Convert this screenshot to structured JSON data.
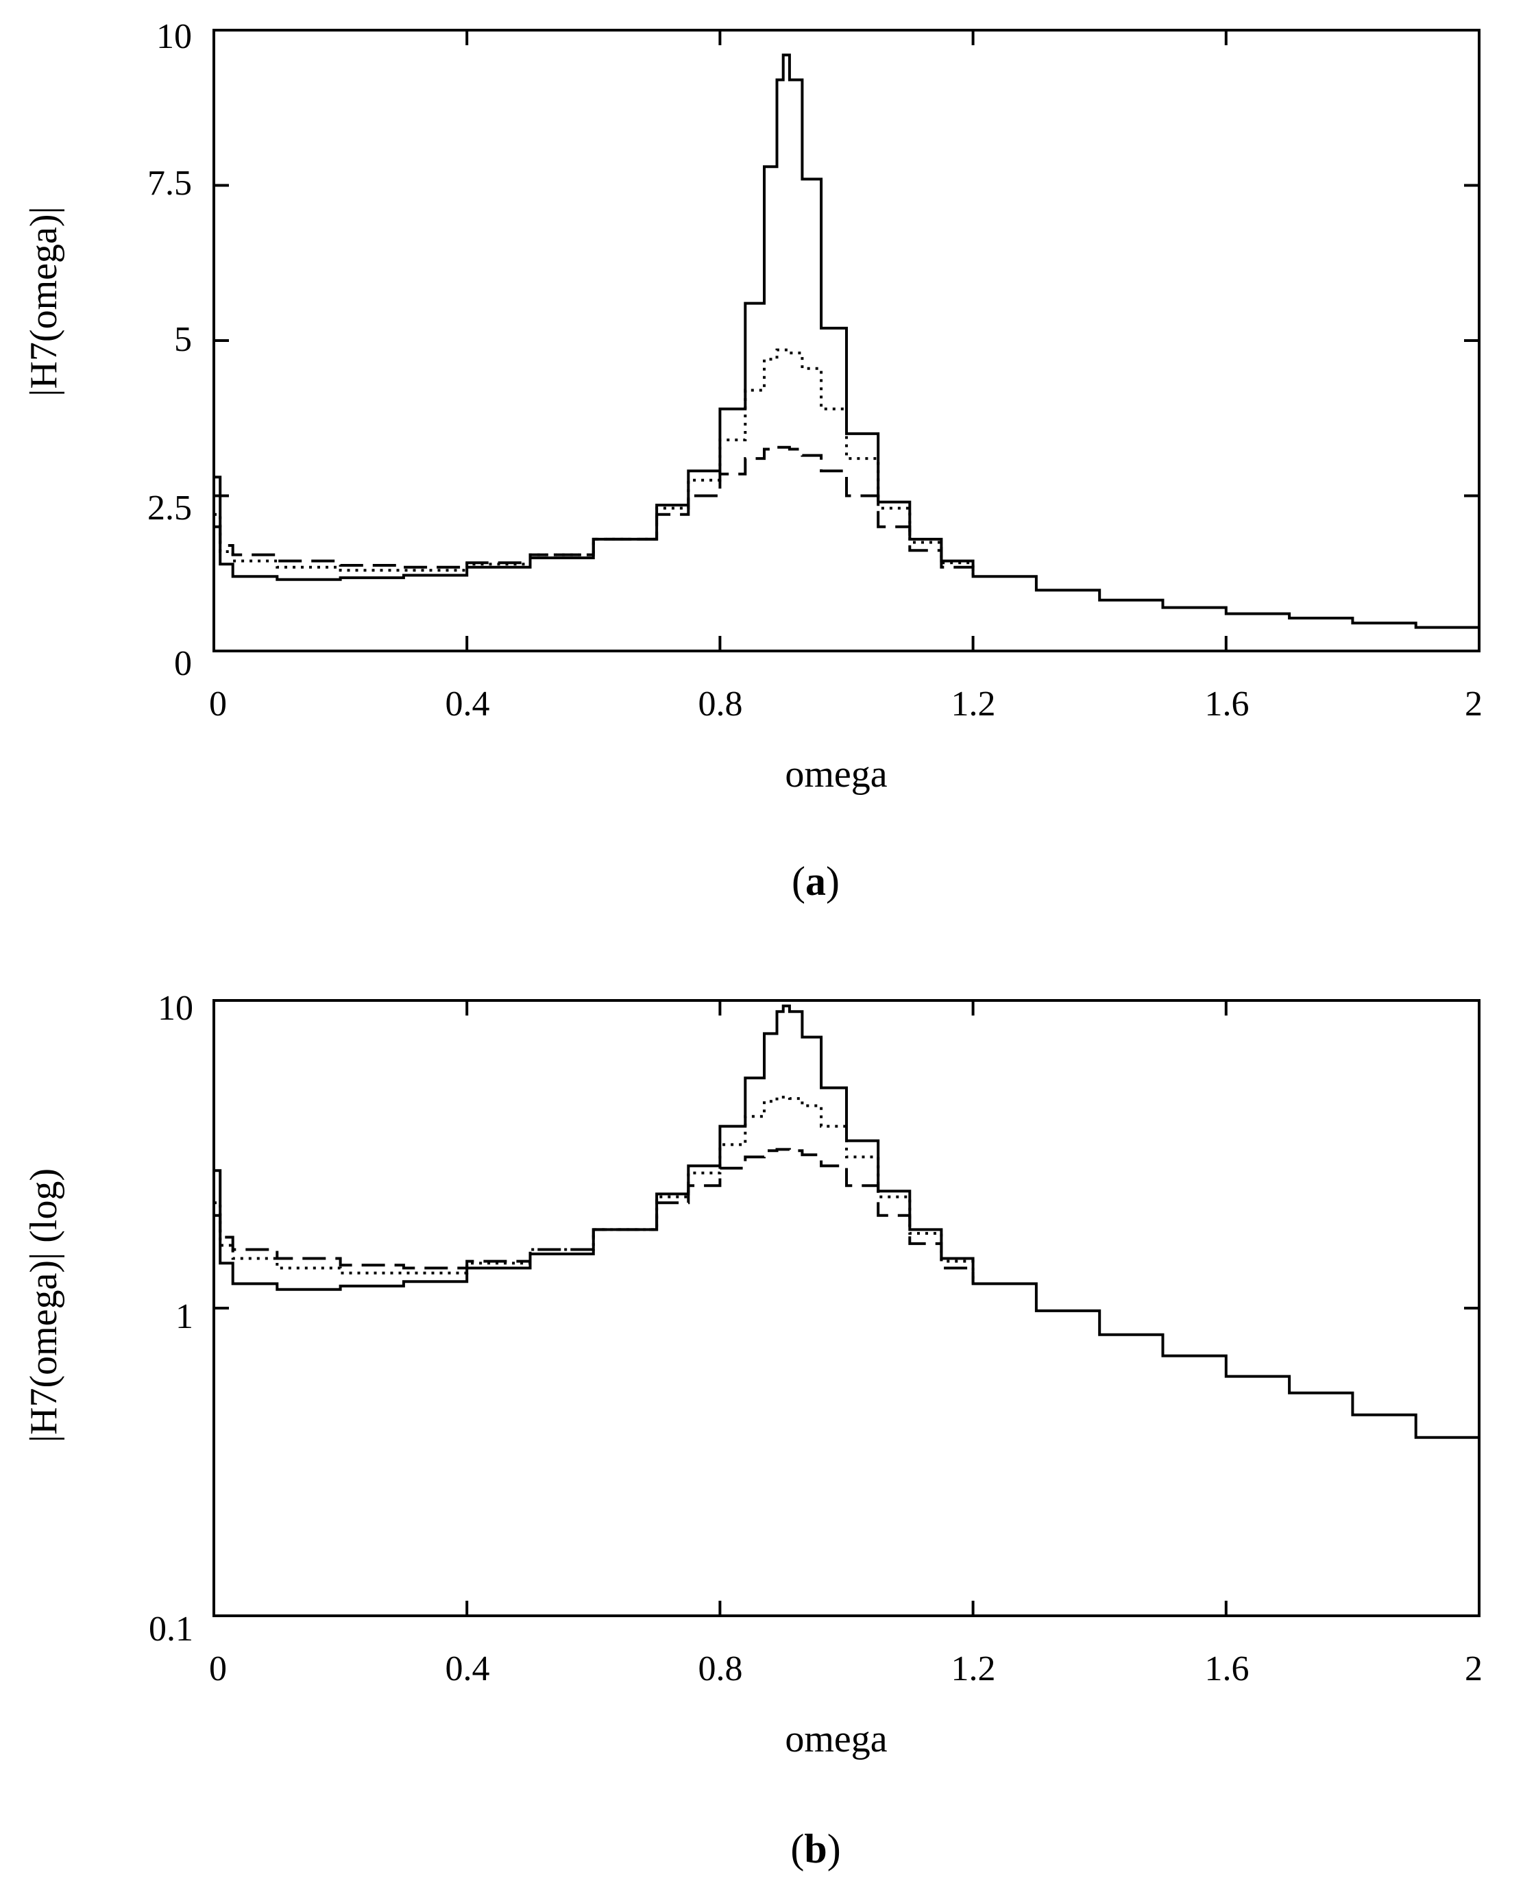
{
  "chart_data": [
    {
      "type": "line",
      "panel_label": {
        "open": "(",
        "letter": "a",
        "close": ")"
      },
      "xlabel": "omega",
      "ylabel": "|H7(omega)|",
      "xlim": [
        0,
        2
      ],
      "ylim": [
        0,
        10
      ],
      "yscale": "linear",
      "xticks": [
        0,
        0.4,
        0.8,
        1.2,
        1.6,
        2
      ],
      "xtick_labels": [
        "0",
        "0.4",
        "0.8",
        "1.2",
        "1.6",
        "2"
      ],
      "yticks": [
        0,
        2.5,
        5,
        7.5,
        10
      ],
      "ytick_labels": [
        "0",
        "2.5",
        "5",
        "7.5",
        "10"
      ],
      "series": [
        {
          "name": "solid",
          "style": "solid",
          "x": [
            0,
            0.01,
            0.03,
            0.1,
            0.2,
            0.3,
            0.4,
            0.5,
            0.6,
            0.7,
            0.75,
            0.8,
            0.84,
            0.87,
            0.89,
            0.9,
            0.91,
            0.93,
            0.96,
            1.0,
            1.05,
            1.1,
            1.15,
            1.2,
            1.3,
            1.4,
            1.5,
            1.6,
            1.7,
            1.8,
            1.9,
            2.0
          ],
          "y": [
            2.8,
            1.4,
            1.2,
            1.15,
            1.18,
            1.22,
            1.35,
            1.5,
            1.8,
            2.35,
            2.9,
            3.9,
            5.6,
            7.8,
            9.2,
            9.6,
            9.2,
            7.6,
            5.2,
            3.5,
            2.4,
            1.8,
            1.45,
            1.2,
            0.98,
            0.82,
            0.7,
            0.6,
            0.53,
            0.45,
            0.38,
            0.32
          ]
        },
        {
          "name": "dotted",
          "style": "dotted",
          "x": [
            0,
            0.01,
            0.03,
            0.1,
            0.2,
            0.3,
            0.4,
            0.5,
            0.6,
            0.7,
            0.75,
            0.8,
            0.84,
            0.87,
            0.89,
            0.9,
            0.91,
            0.93,
            0.96,
            1.0,
            1.05,
            1.1,
            1.15,
            1.2
          ],
          "y": [
            2.2,
            1.6,
            1.45,
            1.35,
            1.3,
            1.3,
            1.4,
            1.55,
            1.8,
            2.3,
            2.75,
            3.4,
            4.2,
            4.7,
            4.85,
            4.85,
            4.8,
            4.55,
            3.9,
            3.1,
            2.3,
            1.75,
            1.42,
            1.2
          ]
        },
        {
          "name": "dashed",
          "style": "dashed",
          "x": [
            0,
            0.01,
            0.03,
            0.1,
            0.2,
            0.3,
            0.4,
            0.5,
            0.6,
            0.7,
            0.75,
            0.8,
            0.84,
            0.87,
            0.89,
            0.9,
            0.91,
            0.93,
            0.96,
            1.0,
            1.05,
            1.1,
            1.15,
            1.2
          ],
          "y": [
            2.0,
            1.7,
            1.55,
            1.45,
            1.38,
            1.35,
            1.42,
            1.55,
            1.8,
            2.2,
            2.5,
            2.85,
            3.1,
            3.25,
            3.28,
            3.28,
            3.25,
            3.15,
            2.9,
            2.5,
            2.0,
            1.62,
            1.35,
            1.2
          ]
        }
      ]
    },
    {
      "type": "line",
      "panel_label": {
        "open": "(",
        "letter": "b",
        "close": ")"
      },
      "xlabel": "omega",
      "ylabel": "|H7(omega)| (log)",
      "xlim": [
        0,
        2
      ],
      "ylim": [
        0.1,
        10
      ],
      "yscale": "log",
      "xticks": [
        0,
        0.4,
        0.8,
        1.2,
        1.6,
        2
      ],
      "xtick_labels": [
        "0",
        "0.4",
        "0.8",
        "1.2",
        "1.6",
        "2"
      ],
      "yticks": [
        0.1,
        1,
        10
      ],
      "ytick_labels": [
        "0.1",
        "1",
        "10"
      ],
      "series": [
        {
          "name": "solid",
          "style": "solid",
          "x": [
            0,
            0.01,
            0.03,
            0.1,
            0.2,
            0.3,
            0.4,
            0.5,
            0.6,
            0.7,
            0.75,
            0.8,
            0.84,
            0.87,
            0.89,
            0.9,
            0.91,
            0.93,
            0.96,
            1.0,
            1.05,
            1.1,
            1.15,
            1.2,
            1.3,
            1.4,
            1.5,
            1.6,
            1.7,
            1.8,
            1.9,
            2.0
          ],
          "y": [
            2.8,
            1.4,
            1.2,
            1.15,
            1.18,
            1.22,
            1.35,
            1.5,
            1.8,
            2.35,
            2.9,
            3.9,
            5.6,
            7.8,
            9.2,
            9.6,
            9.2,
            7.6,
            5.2,
            3.5,
            2.4,
            1.8,
            1.45,
            1.2,
            0.98,
            0.82,
            0.7,
            0.6,
            0.53,
            0.45,
            0.38,
            0.32
          ]
        },
        {
          "name": "dotted",
          "style": "dotted",
          "x": [
            0,
            0.01,
            0.03,
            0.1,
            0.2,
            0.3,
            0.4,
            0.5,
            0.6,
            0.7,
            0.75,
            0.8,
            0.84,
            0.87,
            0.89,
            0.9,
            0.91,
            0.93,
            0.96,
            1.0,
            1.05,
            1.1,
            1.15,
            1.2
          ],
          "y": [
            2.2,
            1.6,
            1.45,
            1.35,
            1.3,
            1.3,
            1.4,
            1.55,
            1.8,
            2.3,
            2.75,
            3.4,
            4.2,
            4.7,
            4.85,
            4.85,
            4.8,
            4.55,
            3.9,
            3.1,
            2.3,
            1.75,
            1.42,
            1.2
          ]
        },
        {
          "name": "dashed",
          "style": "dashed",
          "x": [
            0,
            0.01,
            0.03,
            0.1,
            0.2,
            0.3,
            0.4,
            0.5,
            0.6,
            0.7,
            0.75,
            0.8,
            0.84,
            0.87,
            0.89,
            0.9,
            0.91,
            0.93,
            0.96,
            1.0,
            1.05,
            1.1,
            1.15,
            1.2
          ],
          "y": [
            2.0,
            1.7,
            1.55,
            1.45,
            1.38,
            1.35,
            1.42,
            1.55,
            1.8,
            2.2,
            2.5,
            2.85,
            3.1,
            3.25,
            3.28,
            3.28,
            3.25,
            3.15,
            2.9,
            2.5,
            2.0,
            1.62,
            1.35,
            1.2
          ]
        }
      ]
    }
  ]
}
